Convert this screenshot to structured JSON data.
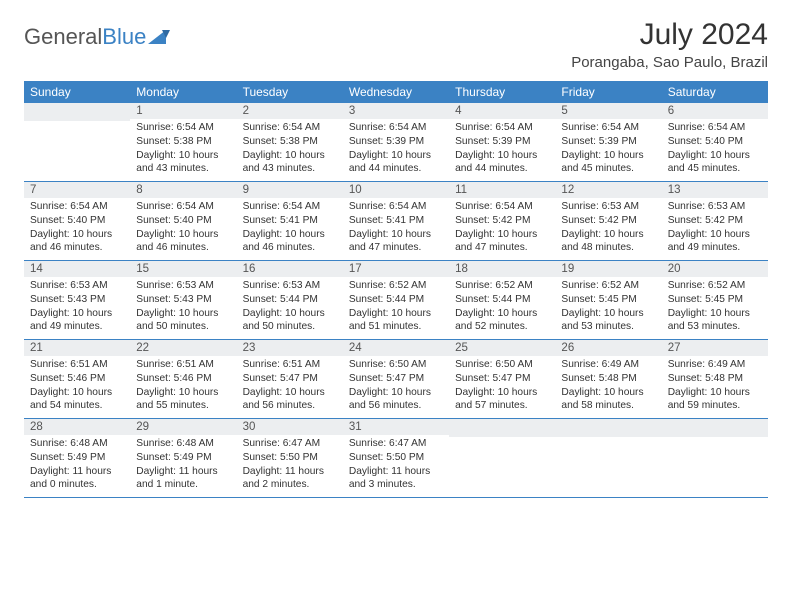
{
  "logo": {
    "general": "General",
    "blue": "Blue"
  },
  "title": "July 2024",
  "location": "Porangaba, Sao Paulo, Brazil",
  "colors": {
    "header_bg": "#3b82c4",
    "daynum_bg": "#eceef0",
    "border": "#3b82c4",
    "text": "#333333",
    "logo_blue": "#3b82c4"
  },
  "weekdays": [
    "Sunday",
    "Monday",
    "Tuesday",
    "Wednesday",
    "Thursday",
    "Friday",
    "Saturday"
  ],
  "weeks": [
    [
      {
        "num": "",
        "lines": []
      },
      {
        "num": "1",
        "lines": [
          "Sunrise: 6:54 AM",
          "Sunset: 5:38 PM",
          "Daylight: 10 hours",
          "and 43 minutes."
        ]
      },
      {
        "num": "2",
        "lines": [
          "Sunrise: 6:54 AM",
          "Sunset: 5:38 PM",
          "Daylight: 10 hours",
          "and 43 minutes."
        ]
      },
      {
        "num": "3",
        "lines": [
          "Sunrise: 6:54 AM",
          "Sunset: 5:39 PM",
          "Daylight: 10 hours",
          "and 44 minutes."
        ]
      },
      {
        "num": "4",
        "lines": [
          "Sunrise: 6:54 AM",
          "Sunset: 5:39 PM",
          "Daylight: 10 hours",
          "and 44 minutes."
        ]
      },
      {
        "num": "5",
        "lines": [
          "Sunrise: 6:54 AM",
          "Sunset: 5:39 PM",
          "Daylight: 10 hours",
          "and 45 minutes."
        ]
      },
      {
        "num": "6",
        "lines": [
          "Sunrise: 6:54 AM",
          "Sunset: 5:40 PM",
          "Daylight: 10 hours",
          "and 45 minutes."
        ]
      }
    ],
    [
      {
        "num": "7",
        "lines": [
          "Sunrise: 6:54 AM",
          "Sunset: 5:40 PM",
          "Daylight: 10 hours",
          "and 46 minutes."
        ]
      },
      {
        "num": "8",
        "lines": [
          "Sunrise: 6:54 AM",
          "Sunset: 5:40 PM",
          "Daylight: 10 hours",
          "and 46 minutes."
        ]
      },
      {
        "num": "9",
        "lines": [
          "Sunrise: 6:54 AM",
          "Sunset: 5:41 PM",
          "Daylight: 10 hours",
          "and 46 minutes."
        ]
      },
      {
        "num": "10",
        "lines": [
          "Sunrise: 6:54 AM",
          "Sunset: 5:41 PM",
          "Daylight: 10 hours",
          "and 47 minutes."
        ]
      },
      {
        "num": "11",
        "lines": [
          "Sunrise: 6:54 AM",
          "Sunset: 5:42 PM",
          "Daylight: 10 hours",
          "and 47 minutes."
        ]
      },
      {
        "num": "12",
        "lines": [
          "Sunrise: 6:53 AM",
          "Sunset: 5:42 PM",
          "Daylight: 10 hours",
          "and 48 minutes."
        ]
      },
      {
        "num": "13",
        "lines": [
          "Sunrise: 6:53 AM",
          "Sunset: 5:42 PM",
          "Daylight: 10 hours",
          "and 49 minutes."
        ]
      }
    ],
    [
      {
        "num": "14",
        "lines": [
          "Sunrise: 6:53 AM",
          "Sunset: 5:43 PM",
          "Daylight: 10 hours",
          "and 49 minutes."
        ]
      },
      {
        "num": "15",
        "lines": [
          "Sunrise: 6:53 AM",
          "Sunset: 5:43 PM",
          "Daylight: 10 hours",
          "and 50 minutes."
        ]
      },
      {
        "num": "16",
        "lines": [
          "Sunrise: 6:53 AM",
          "Sunset: 5:44 PM",
          "Daylight: 10 hours",
          "and 50 minutes."
        ]
      },
      {
        "num": "17",
        "lines": [
          "Sunrise: 6:52 AM",
          "Sunset: 5:44 PM",
          "Daylight: 10 hours",
          "and 51 minutes."
        ]
      },
      {
        "num": "18",
        "lines": [
          "Sunrise: 6:52 AM",
          "Sunset: 5:44 PM",
          "Daylight: 10 hours",
          "and 52 minutes."
        ]
      },
      {
        "num": "19",
        "lines": [
          "Sunrise: 6:52 AM",
          "Sunset: 5:45 PM",
          "Daylight: 10 hours",
          "and 53 minutes."
        ]
      },
      {
        "num": "20",
        "lines": [
          "Sunrise: 6:52 AM",
          "Sunset: 5:45 PM",
          "Daylight: 10 hours",
          "and 53 minutes."
        ]
      }
    ],
    [
      {
        "num": "21",
        "lines": [
          "Sunrise: 6:51 AM",
          "Sunset: 5:46 PM",
          "Daylight: 10 hours",
          "and 54 minutes."
        ]
      },
      {
        "num": "22",
        "lines": [
          "Sunrise: 6:51 AM",
          "Sunset: 5:46 PM",
          "Daylight: 10 hours",
          "and 55 minutes."
        ]
      },
      {
        "num": "23",
        "lines": [
          "Sunrise: 6:51 AM",
          "Sunset: 5:47 PM",
          "Daylight: 10 hours",
          "and 56 minutes."
        ]
      },
      {
        "num": "24",
        "lines": [
          "Sunrise: 6:50 AM",
          "Sunset: 5:47 PM",
          "Daylight: 10 hours",
          "and 56 minutes."
        ]
      },
      {
        "num": "25",
        "lines": [
          "Sunrise: 6:50 AM",
          "Sunset: 5:47 PM",
          "Daylight: 10 hours",
          "and 57 minutes."
        ]
      },
      {
        "num": "26",
        "lines": [
          "Sunrise: 6:49 AM",
          "Sunset: 5:48 PM",
          "Daylight: 10 hours",
          "and 58 minutes."
        ]
      },
      {
        "num": "27",
        "lines": [
          "Sunrise: 6:49 AM",
          "Sunset: 5:48 PM",
          "Daylight: 10 hours",
          "and 59 minutes."
        ]
      }
    ],
    [
      {
        "num": "28",
        "lines": [
          "Sunrise: 6:48 AM",
          "Sunset: 5:49 PM",
          "Daylight: 11 hours",
          "and 0 minutes."
        ]
      },
      {
        "num": "29",
        "lines": [
          "Sunrise: 6:48 AM",
          "Sunset: 5:49 PM",
          "Daylight: 11 hours",
          "and 1 minute."
        ]
      },
      {
        "num": "30",
        "lines": [
          "Sunrise: 6:47 AM",
          "Sunset: 5:50 PM",
          "Daylight: 11 hours",
          "and 2 minutes."
        ]
      },
      {
        "num": "31",
        "lines": [
          "Sunrise: 6:47 AM",
          "Sunset: 5:50 PM",
          "Daylight: 11 hours",
          "and 3 minutes."
        ]
      },
      {
        "num": "",
        "lines": []
      },
      {
        "num": "",
        "lines": []
      },
      {
        "num": "",
        "lines": []
      }
    ]
  ]
}
